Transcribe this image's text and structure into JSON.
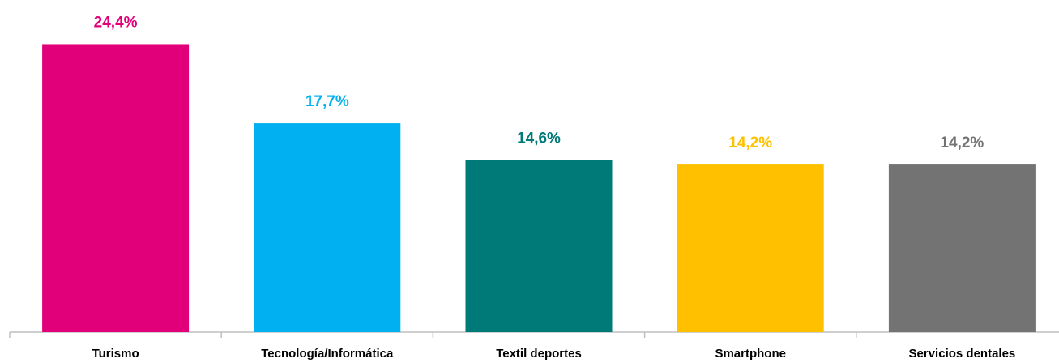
{
  "chart_data": {
    "type": "bar",
    "categories": [
      "Turismo",
      "Tecnología/Informática",
      "Textil deportes",
      "Smartphone",
      "Servicios dentales"
    ],
    "values": [
      24.4,
      17.7,
      14.6,
      14.2,
      14.2
    ],
    "value_labels": [
      "24,4%",
      "17,7%",
      "14,6%",
      "14,2%",
      "14,2%"
    ],
    "colors": [
      "#e2007a",
      "#00b0f0",
      "#007a78",
      "#ffc000",
      "#737373"
    ],
    "ylim": [
      0,
      28
    ]
  }
}
